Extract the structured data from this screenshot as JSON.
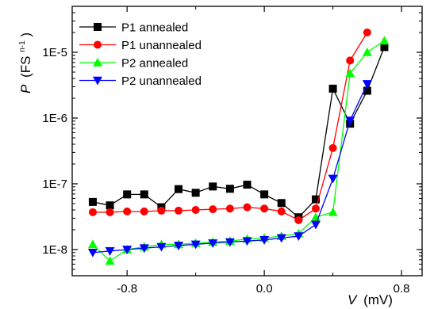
{
  "chart_data": {
    "type": "line",
    "xlabel_symbol": "V",
    "xlabel_unit": "(mV)",
    "ylabel_symbol": "P",
    "ylabel_unit_base": "(FS",
    "ylabel_unit_sup": "n-1",
    "ylabel_unit_close": ")",
    "xlim": [
      -1.12,
      0.92
    ],
    "ylim": [
      4e-09,
      5e-05
    ],
    "yscale": "log",
    "x_ticks": [
      -0.8,
      0.0,
      0.8
    ],
    "x_tick_labels": [
      "-0.8",
      "0.0",
      "0.8"
    ],
    "y_ticks": [
      1e-08,
      1e-07,
      1e-06,
      1e-05
    ],
    "y_tick_labels": [
      "1E-8",
      "1E-7",
      "1E-6",
      "1E-5"
    ],
    "grid": false,
    "legend_position": "top-left",
    "series": [
      {
        "name": "P1 annealed",
        "color": "#000000",
        "marker": "square",
        "x": [
          -1.0,
          -0.9,
          -0.8,
          -0.7,
          -0.6,
          -0.5,
          -0.4,
          -0.3,
          -0.2,
          -0.1,
          0.0,
          0.1,
          0.2,
          0.3,
          0.4,
          0.5,
          0.6,
          0.7
        ],
        "y": [
          5.3e-08,
          4.7e-08,
          6.9e-08,
          6.9e-08,
          4.4e-08,
          8.3e-08,
          7.3e-08,
          9.1e-08,
          8.4e-08,
          9.7e-08,
          6.9e-08,
          5.1e-08,
          3.1e-08,
          5.8e-08,
          2.8e-06,
          8.2e-07,
          2.6e-06,
          1.2e-05
        ]
      },
      {
        "name": "P1 unannealed",
        "color": "#ff0000",
        "marker": "circle",
        "x": [
          -1.0,
          -0.9,
          -0.8,
          -0.7,
          -0.6,
          -0.5,
          -0.4,
          -0.3,
          -0.2,
          -0.1,
          0.0,
          0.1,
          0.2,
          0.3,
          0.4,
          0.5,
          0.6
        ],
        "y": [
          3.7e-08,
          3.7e-08,
          3.8e-08,
          3.8e-08,
          3.9e-08,
          3.9e-08,
          4e-08,
          4.1e-08,
          4.2e-08,
          4.4e-08,
          4.2e-08,
          3.8e-08,
          2.8e-08,
          4.2e-08,
          3.5e-07,
          7.5e-06,
          2e-05
        ]
      },
      {
        "name": "P2 annealed",
        "color": "#00ff00",
        "marker": "triangle-up",
        "x": [
          -1.0,
          -0.9,
          -0.8,
          -0.7,
          -0.6,
          -0.5,
          -0.4,
          -0.3,
          -0.2,
          -0.1,
          0.0,
          0.1,
          0.2,
          0.3,
          0.4,
          0.5,
          0.6,
          0.7
        ],
        "y": [
          1.2e-08,
          6.7e-09,
          1e-08,
          1.1e-08,
          1.2e-08,
          1.2e-08,
          1.25e-08,
          1.3e-08,
          1.35e-08,
          1.45e-08,
          1.5e-08,
          1.6e-08,
          1.75e-08,
          3.1e-08,
          3.7e-08,
          4.8e-06,
          1e-05,
          1.5e-05
        ]
      },
      {
        "name": "P2 unannealed",
        "color": "#0000ff",
        "marker": "triangle-down",
        "x": [
          -1.0,
          -0.9,
          -0.8,
          -0.7,
          -0.6,
          -0.5,
          -0.4,
          -0.3,
          -0.2,
          -0.1,
          0.0,
          0.1,
          0.2,
          0.3,
          0.4,
          0.5,
          0.6
        ],
        "y": [
          9e-09,
          9.5e-09,
          1e-08,
          1.05e-08,
          1.1e-08,
          1.15e-08,
          1.2e-08,
          1.25e-08,
          1.3e-08,
          1.35e-08,
          1.4e-08,
          1.5e-08,
          1.6e-08,
          2.4e-08,
          1.2e-07,
          9.2e-07,
          3.3e-06
        ]
      }
    ]
  }
}
